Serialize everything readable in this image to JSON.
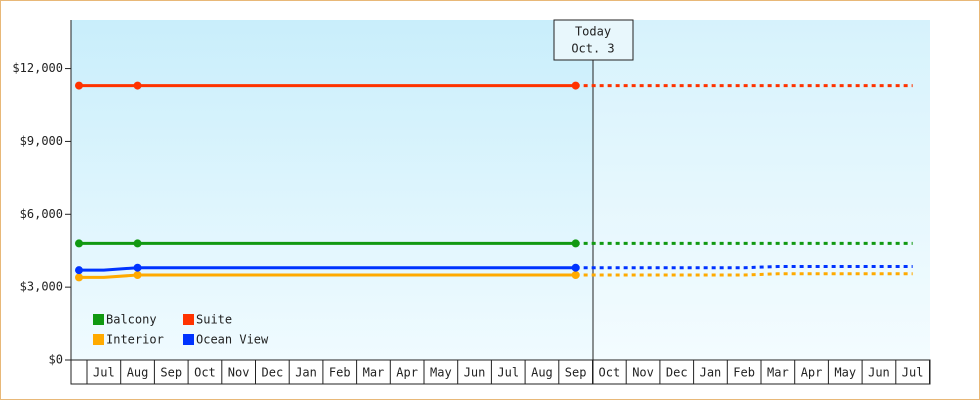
{
  "chart_data": {
    "type": "line",
    "categories": [
      null,
      "Jul",
      "Aug",
      "Sep",
      "Oct",
      "Nov",
      "Dec",
      "Jan",
      "Feb",
      "Mar",
      "Apr",
      "May",
      "Jun",
      "Jul",
      "Aug",
      "Sep",
      "Oct",
      "Nov",
      "Dec",
      "Jan",
      "Feb",
      "Mar",
      "Apr",
      "May",
      "Jun",
      "Jul"
    ],
    "series": [
      {
        "name": "Balcony",
        "color": "#119911",
        "values": [
          4800,
          4800,
          4800,
          4800,
          4800,
          4800,
          4800,
          4800,
          4800,
          4800,
          4800,
          4800,
          4800,
          4800,
          4800,
          4800,
          4800,
          4800,
          4800,
          4800,
          4800,
          4800,
          4800,
          4800,
          4800,
          4800
        ]
      },
      {
        "name": "Suite",
        "color": "#ff3300",
        "values": [
          11300,
          11300,
          11300,
          11300,
          11300,
          11300,
          11300,
          11300,
          11300,
          11300,
          11300,
          11300,
          11300,
          11300,
          11300,
          11300,
          11300,
          11300,
          11300,
          11300,
          11300,
          11300,
          11300,
          11300,
          11300,
          11300
        ]
      },
      {
        "name": "Interior",
        "color": "#ffaa00",
        "values": [
          3400,
          3400,
          3500,
          3500,
          3500,
          3500,
          3500,
          3500,
          3500,
          3500,
          3500,
          3500,
          3500,
          3500,
          3500,
          3500,
          3500,
          3500,
          3500,
          3500,
          3500,
          3550,
          3550,
          3550,
          3550,
          3550
        ]
      },
      {
        "name": "Ocean View",
        "color": "#0033ff",
        "values": [
          3700,
          3700,
          3800,
          3800,
          3800,
          3800,
          3800,
          3800,
          3800,
          3800,
          3800,
          3800,
          3800,
          3800,
          3800,
          3800,
          3800,
          3800,
          3800,
          3800,
          3800,
          3850,
          3850,
          3850,
          3850,
          3850
        ]
      }
    ],
    "ylim": [
      0,
      14000
    ],
    "yticks": [
      {
        "value": 0,
        "label": "$0"
      },
      {
        "value": 3000,
        "label": "$3,000"
      },
      {
        "value": 6000,
        "label": "$6,000"
      },
      {
        "value": 9000,
        "label": "$9,000"
      },
      {
        "value": 12000,
        "label": "$12,000"
      }
    ],
    "annotation": [
      "Today",
      "Oct. 3"
    ]
  }
}
